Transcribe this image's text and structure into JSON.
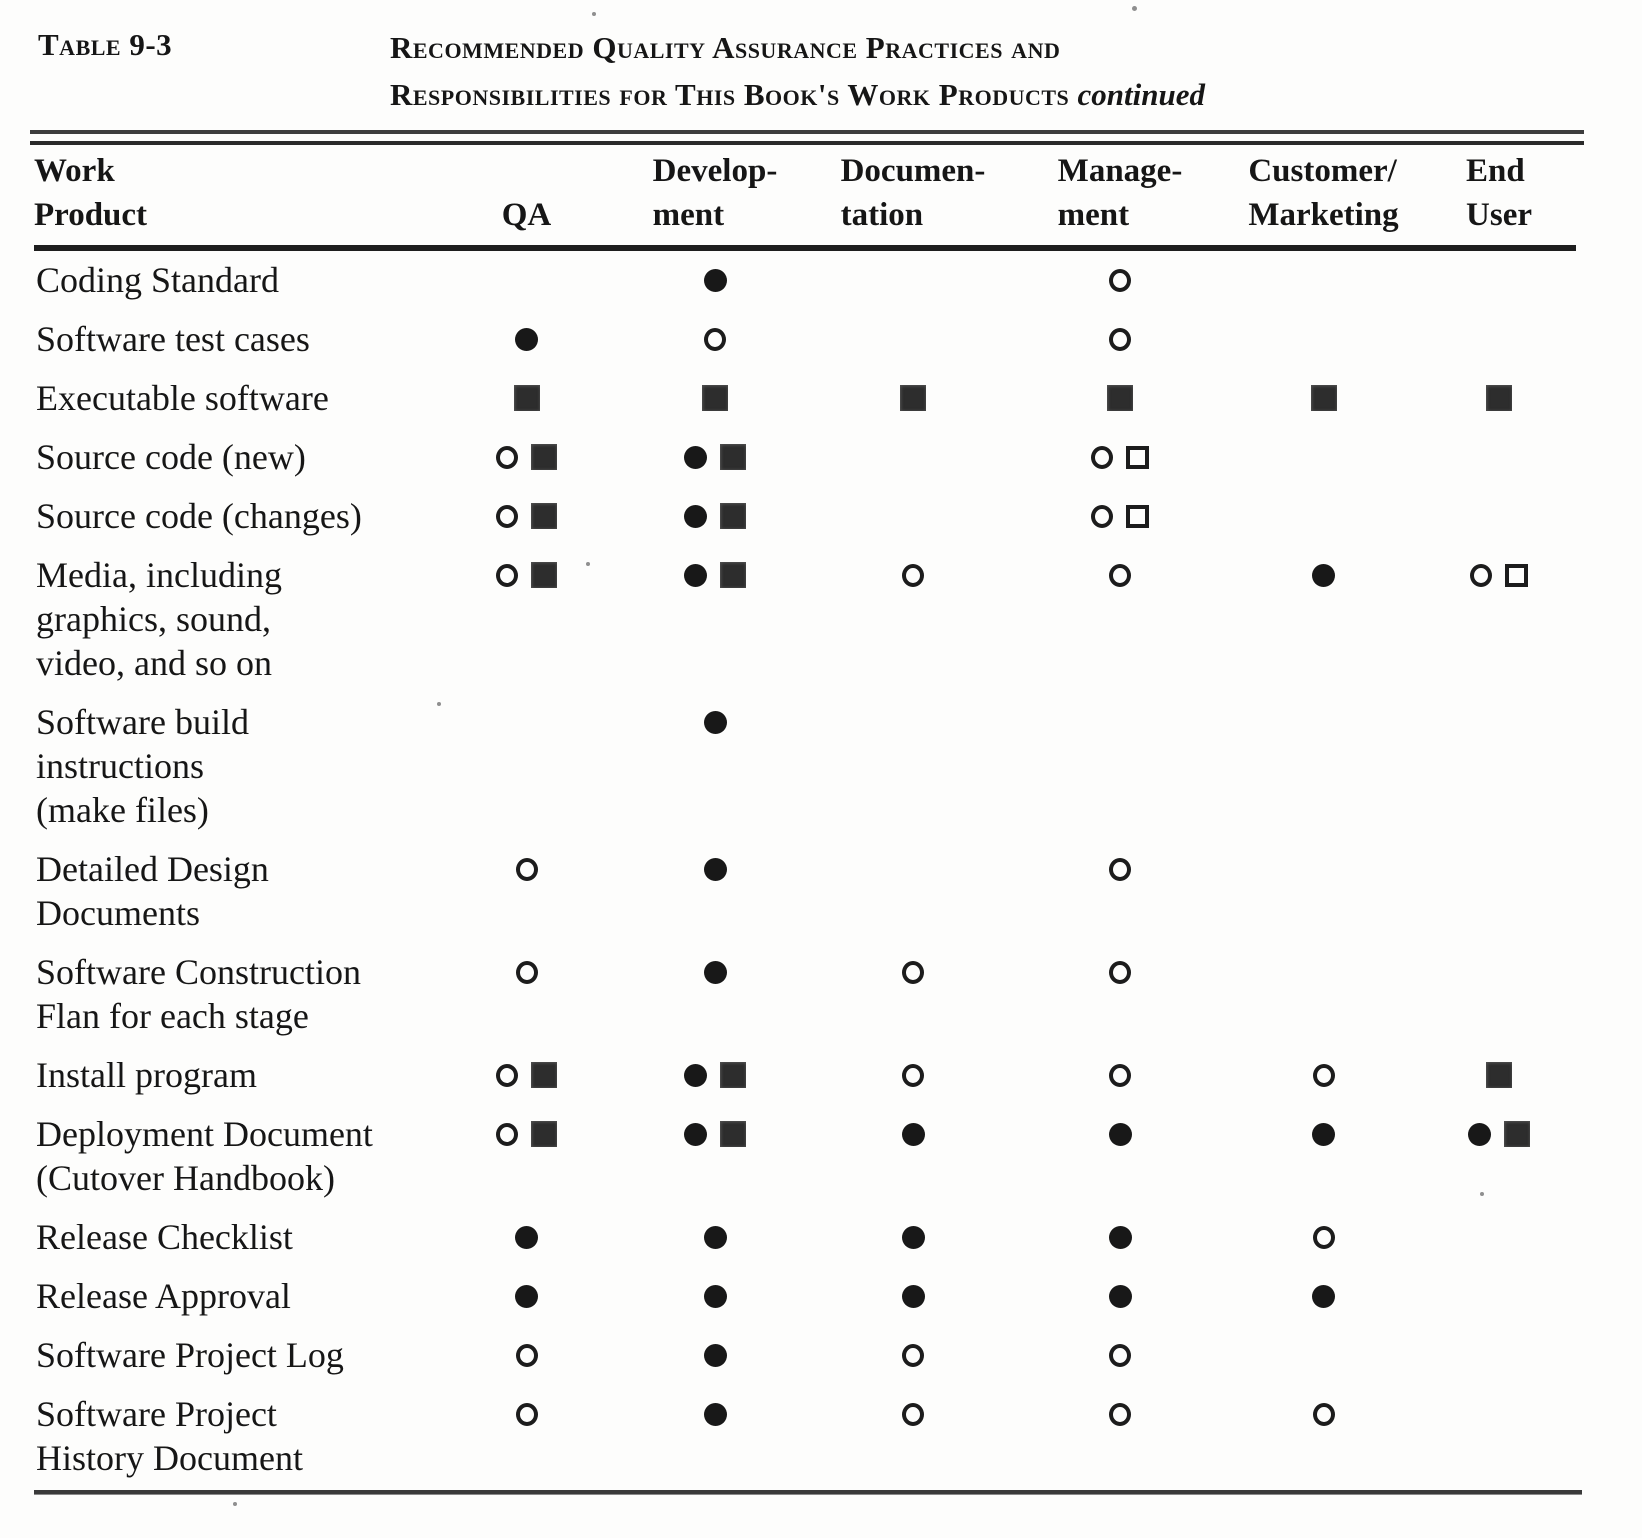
{
  "page": {
    "table_label": "Table 9-3",
    "title_line1": "Recommended Quality Assurance Practices and",
    "title_line2": "Responsibilities for This Book's Work Products",
    "title_continued": "continued"
  },
  "columns": [
    "Work\nProduct",
    "QA",
    "Develop-\nment",
    "Documen-\ntation",
    "Manage-\nment",
    "Customer/\nMarketing",
    "End\nUser"
  ],
  "symbol_legend": {
    "filled-circle": "filled circle",
    "open-circle": "open circle",
    "filled-square": "filled square",
    "open-square": "open square"
  },
  "colors": {
    "ink": "#161616",
    "paper": "#fdfdfc",
    "square_fill": "#2d2d2d"
  },
  "rows": [
    {
      "label": "Coding Standard",
      "cells": [
        [],
        [
          "filled-circle"
        ],
        [],
        [
          "open-circle"
        ],
        [],
        []
      ]
    },
    {
      "label": "Software test cases",
      "cells": [
        [
          "filled-circle"
        ],
        [
          "open-circle"
        ],
        [],
        [
          "open-circle"
        ],
        [],
        []
      ]
    },
    {
      "label": "Executable software",
      "cells": [
        [
          "filled-square"
        ],
        [
          "filled-square"
        ],
        [
          "filled-square"
        ],
        [
          "filled-square"
        ],
        [
          "filled-square"
        ],
        [
          "filled-square"
        ]
      ]
    },
    {
      "label": "Source code (new)",
      "cells": [
        [
          "open-circle",
          "filled-square"
        ],
        [
          "filled-circle",
          "filled-square"
        ],
        [],
        [
          "open-circle",
          "open-square"
        ],
        [],
        []
      ]
    },
    {
      "label": "Source code (changes)",
      "cells": [
        [
          "open-circle",
          "filled-square"
        ],
        [
          "filled-circle",
          "filled-square"
        ],
        [],
        [
          "open-circle",
          "open-square"
        ],
        [],
        []
      ]
    },
    {
      "label": "Media, including\ngraphics, sound,\nvideo, and so on",
      "cells": [
        [
          "open-circle",
          "filled-square"
        ],
        [
          "filled-circle",
          "filled-square"
        ],
        [
          "open-circle"
        ],
        [
          "open-circle"
        ],
        [
          "filled-circle"
        ],
        [
          "open-circle",
          "open-square"
        ]
      ]
    },
    {
      "label": "Software build\ninstructions\n(make files)",
      "cells": [
        [],
        [
          "filled-circle"
        ],
        [],
        [],
        [],
        []
      ]
    },
    {
      "label": "Detailed Design\nDocuments",
      "cells": [
        [
          "open-circle"
        ],
        [
          "filled-circle"
        ],
        [],
        [
          "open-circle"
        ],
        [],
        []
      ]
    },
    {
      "label": "Software Construction\nFlan for each stage",
      "cells": [
        [
          "open-circle"
        ],
        [
          "filled-circle"
        ],
        [
          "open-circle"
        ],
        [
          "open-circle"
        ],
        [],
        []
      ]
    },
    {
      "label": "Install program",
      "cells": [
        [
          "open-circle",
          "filled-square"
        ],
        [
          "filled-circle",
          "filled-square"
        ],
        [
          "open-circle"
        ],
        [
          "open-circle"
        ],
        [
          "open-circle"
        ],
        [
          "filled-square"
        ]
      ]
    },
    {
      "label": "Deployment Document\n(Cutover Handbook)",
      "cells": [
        [
          "open-circle",
          "filled-square"
        ],
        [
          "filled-circle",
          "filled-square"
        ],
        [
          "filled-circle"
        ],
        [
          "filled-circle"
        ],
        [
          "filled-circle"
        ],
        [
          "filled-circle",
          "filled-square"
        ]
      ]
    },
    {
      "label": "Release Checklist",
      "cells": [
        [
          "filled-circle"
        ],
        [
          "filled-circle"
        ],
        [
          "filled-circle"
        ],
        [
          "filled-circle"
        ],
        [
          "open-circle"
        ],
        []
      ]
    },
    {
      "label": "Release Approval",
      "cells": [
        [
          "filled-circle"
        ],
        [
          "filled-circle"
        ],
        [
          "filled-circle"
        ],
        [
          "filled-circle"
        ],
        [
          "filled-circle"
        ],
        []
      ]
    },
    {
      "label": "Software Project Log",
      "cells": [
        [
          "open-circle"
        ],
        [
          "filled-circle"
        ],
        [
          "open-circle"
        ],
        [
          "open-circle"
        ],
        [],
        []
      ]
    },
    {
      "label": "Software Project\nHistory Document",
      "cells": [
        [
          "open-circle"
        ],
        [
          "filled-circle"
        ],
        [
          "open-circle"
        ],
        [
          "open-circle"
        ],
        [
          "open-circle"
        ],
        []
      ]
    }
  ]
}
